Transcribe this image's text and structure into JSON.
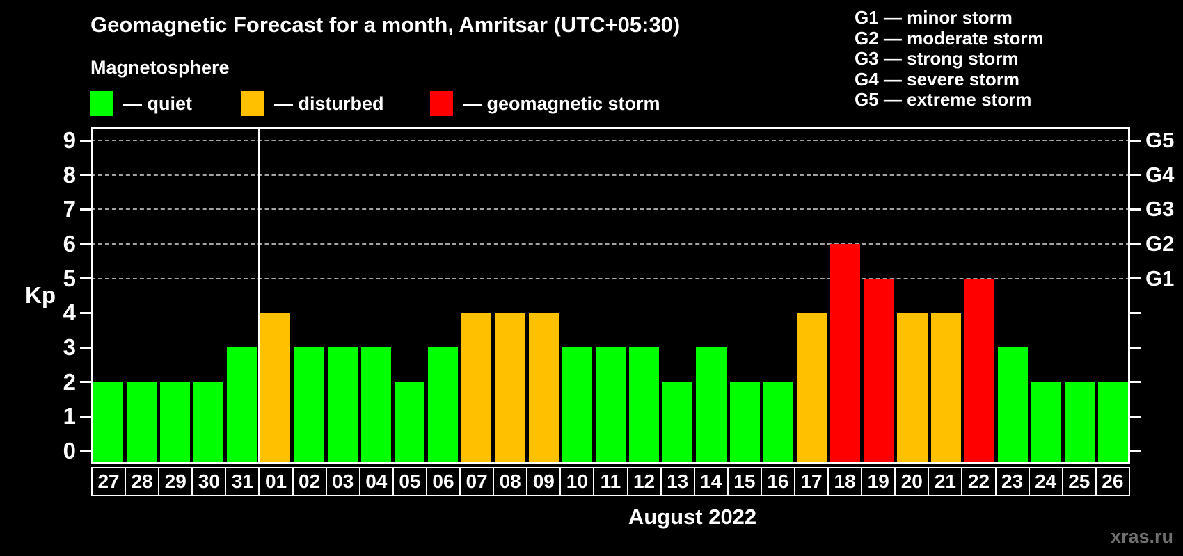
{
  "title": "Geomagnetic Forecast for a month, Amritsar (UTC+05:30)",
  "subtitle": "Magnetosphere",
  "legend": {
    "items": [
      {
        "key": "quiet",
        "label": "— quiet",
        "color": "#00ff00"
      },
      {
        "key": "disturbed",
        "label": "— disturbed",
        "color": "#ffc000"
      },
      {
        "key": "storm",
        "label": "— geomagnetic storm",
        "color": "#ff0000"
      }
    ]
  },
  "storm_scale_legend": [
    "G1 — minor storm",
    "G2 — moderate storm",
    "G3 — strong storm",
    "G4 — severe storm",
    "G5 — extreme storm"
  ],
  "watermark": "xras.ru",
  "chart_data": {
    "type": "bar",
    "title": "Geomagnetic Forecast for a month, Amritsar (UTC+05:30)",
    "xlabel": "August 2022",
    "ylabel": "Kp",
    "ylim": [
      0,
      9
    ],
    "yticks": [
      0,
      1,
      2,
      3,
      4,
      5,
      6,
      7,
      8,
      9
    ],
    "gridlines_at_kp": [
      5,
      6,
      7,
      8,
      9
    ],
    "grid": "dashed",
    "right_axis": [
      {
        "kp": 5,
        "label": "G1"
      },
      {
        "kp": 6,
        "label": "G2"
      },
      {
        "kp": 7,
        "label": "G3"
      },
      {
        "kp": 8,
        "label": "G4"
      },
      {
        "kp": 9,
        "label": "G5"
      }
    ],
    "status_colors": {
      "quiet": "#00ff00",
      "disturbed": "#ffc000",
      "storm": "#ff0000"
    },
    "month_separator_before_index": 5,
    "categories": [
      "27",
      "28",
      "29",
      "30",
      "31",
      "01",
      "02",
      "03",
      "04",
      "05",
      "06",
      "07",
      "08",
      "09",
      "10",
      "11",
      "12",
      "13",
      "14",
      "15",
      "16",
      "17",
      "18",
      "19",
      "20",
      "21",
      "22",
      "23",
      "24",
      "25",
      "26"
    ],
    "values": [
      2,
      2,
      2,
      2,
      3,
      4,
      3,
      3,
      3,
      2,
      3,
      4,
      4,
      4,
      3,
      3,
      3,
      2,
      3,
      2,
      2,
      4,
      6,
      5,
      4,
      4,
      5,
      3,
      2,
      2,
      2
    ],
    "statuses": [
      "quiet",
      "quiet",
      "quiet",
      "quiet",
      "quiet",
      "disturbed",
      "quiet",
      "quiet",
      "quiet",
      "quiet",
      "quiet",
      "disturbed",
      "disturbed",
      "disturbed",
      "quiet",
      "quiet",
      "quiet",
      "quiet",
      "quiet",
      "quiet",
      "quiet",
      "disturbed",
      "storm",
      "storm",
      "disturbed",
      "disturbed",
      "storm",
      "quiet",
      "quiet",
      "quiet",
      "quiet"
    ]
  }
}
